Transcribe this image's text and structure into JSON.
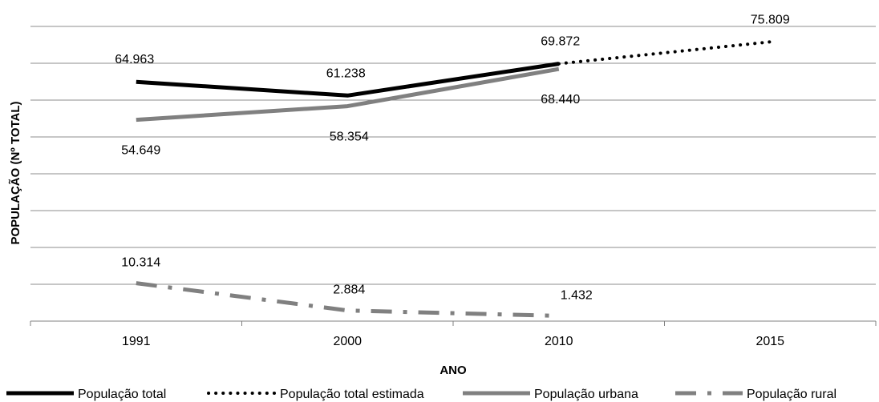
{
  "chart_data": {
    "type": "line",
    "title": "",
    "xlabel": "ANO",
    "ylabel": "POPULAÇÃO (Nº TOTAL)",
    "categories": [
      "1991",
      "2000",
      "2010",
      "2015"
    ],
    "ylim": [
      0,
      80000
    ],
    "grid": true,
    "legend_position": "bottom",
    "series": [
      {
        "name": "População total",
        "style": "solid-thick",
        "color": "#000000",
        "values": [
          64963,
          61238,
          69872,
          null
        ],
        "data_labels": [
          "64.963",
          "61.238",
          "69.872",
          ""
        ]
      },
      {
        "name": "População total estimada",
        "style": "dotted",
        "color": "#000000",
        "values": [
          null,
          null,
          69872,
          75809
        ],
        "data_labels": [
          "",
          "",
          "",
          "75.809"
        ]
      },
      {
        "name": "População urbana",
        "style": "solid",
        "color": "#808080",
        "values": [
          54649,
          58354,
          68440,
          null
        ],
        "data_labels": [
          "54.649",
          "58.354",
          "68.440",
          ""
        ]
      },
      {
        "name": "População rural",
        "style": "dash-dot",
        "color": "#808080",
        "values": [
          10314,
          2884,
          1432,
          null
        ],
        "data_labels": [
          "10.314",
          "2.884",
          "1.432",
          ""
        ]
      }
    ]
  }
}
